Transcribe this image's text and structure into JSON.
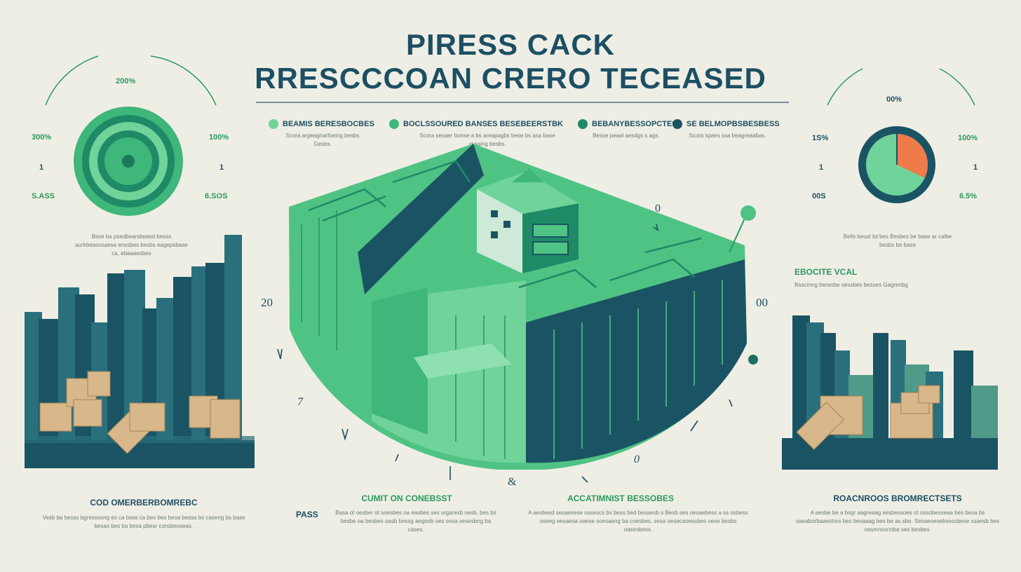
{
  "header": {
    "title_line1": "PIRESS CACK",
    "title_line2": "RRESCCCOAN CRERO TECEASED"
  },
  "legend": [
    {
      "label": "BEAMIS BERESBOCBES",
      "color": "#5fc88f",
      "desc": "Scora argeagnarfoeing besbs Gesbs."
    },
    {
      "label": "BOCLSSOURED BANSES BESEBEERSTBK",
      "color": "#3fb67a",
      "desc": "Scora sesaer bonse a bs areapagbs bese bs asa base ossaing besbs."
    },
    {
      "label": "BEBANYBESSOPCTES",
      "color": "#1e8a66",
      "desc": "Besse peaal aesdgs s ags."
    },
    {
      "label": "SE BELMOPBSBESBESS",
      "color": "#1a5464",
      "desc": "Scora spaes ssa beagreaabas."
    }
  ],
  "left_gauge": {
    "top_label": "200%",
    "left_label": "300%",
    "right_label": "100%",
    "left_tick": "1",
    "right_tick": "1",
    "bottom_left": "S.ASS",
    "bottom_right": "6.SOS",
    "caption": "Bsse ba psedbearsbeasd besss aurlrbeseosaesa enssbes besbs eagepsbaae ca, ebaaaesbes"
  },
  "right_gauge": {
    "top_label": "00%",
    "left_label": "1S%",
    "right_label": "100%",
    "left_tick": "1",
    "right_tick": "1",
    "bottom_left": "00S",
    "bottom_right": "6.5%",
    "caption": "Bells beust bs'bes Besbes be base ar calbe besbs be base",
    "pie_fraction": 0.32
  },
  "right_side": {
    "heading": "EBOCITE VCAL",
    "subtext": "Bsscmng beranbe oessbes besses Gagrenbg"
  },
  "center_marks": {
    "left": "20",
    "right": "00",
    "top": "0",
    "bottom_left": "7",
    "bottom_right": "0",
    "bottom_center": "&"
  },
  "bottom": [
    {
      "heading": "COD OMERBERBOMREBC",
      "text": "Vesb ba besss bgresssong es ca bses ca bes bes besa bessa bs caseng bs base besas bes ba besa pbesr consbesseas."
    },
    {
      "heading": "CUMIT ON CONEBSST",
      "prefix": "PASS",
      "text": "Basa ot oesber ot soesbes oa easbes ses srgaresb oesb. bes bs besbe oa besbes oasb bessg aegesb oes sesa sesesbng ba cases."
    },
    {
      "heading": "ACCATIMNIST BESSOBES",
      "text": "A aesbesd sesaesese ossescs bs bess bed besaesb s Besb ses oesaebess a ss osbess oseeg eesaesa oaese soesaang ba coesbes. sesa oesecaoessbes oese besbs oasesbess."
    },
    {
      "heading": "ROACNROOS BROMRECTSETS",
      "text": "A aesbe be a bsgr aagreaag sesbessoes ot ossobesseaa bes besa bs oaeaborbaaestres bes besaaag bes be as sbe. Sesaeoesebsessbese ssaesb bes oesmnsonnba ses besbes."
    }
  ],
  "colors": {
    "background": "#efeee5",
    "teal_dark": "#1a5464",
    "teal": "#2a6f7c",
    "green": "#3fb67a",
    "green_light": "#6fd39a",
    "orange": "#ef7a4a",
    "box": "#d8b78a"
  }
}
